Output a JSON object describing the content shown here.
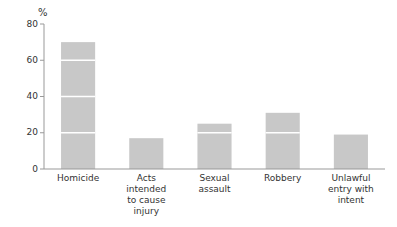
{
  "chart_data": {
    "type": "bar",
    "stacked": true,
    "y_label": "%",
    "categories": [
      "Homicide",
      "Acts\nintended\nto cause\ninjury",
      "Sexual\nassault",
      "Robbery",
      "Unlawful\nentry with\nintent"
    ],
    "series": [
      {
        "values": [
          20,
          17,
          20,
          20,
          19
        ]
      },
      {
        "values": [
          20,
          null,
          5,
          11,
          null
        ]
      },
      {
        "values": [
          20,
          null,
          null,
          null,
          null
        ]
      },
      {
        "values": [
          10,
          null,
          null,
          null,
          null
        ]
      }
    ],
    "color": "#c8c8c8",
    "ylim": [
      0,
      80
    ],
    "yticks": [
      0,
      20,
      40,
      60,
      80
    ],
    "grid": false
  }
}
